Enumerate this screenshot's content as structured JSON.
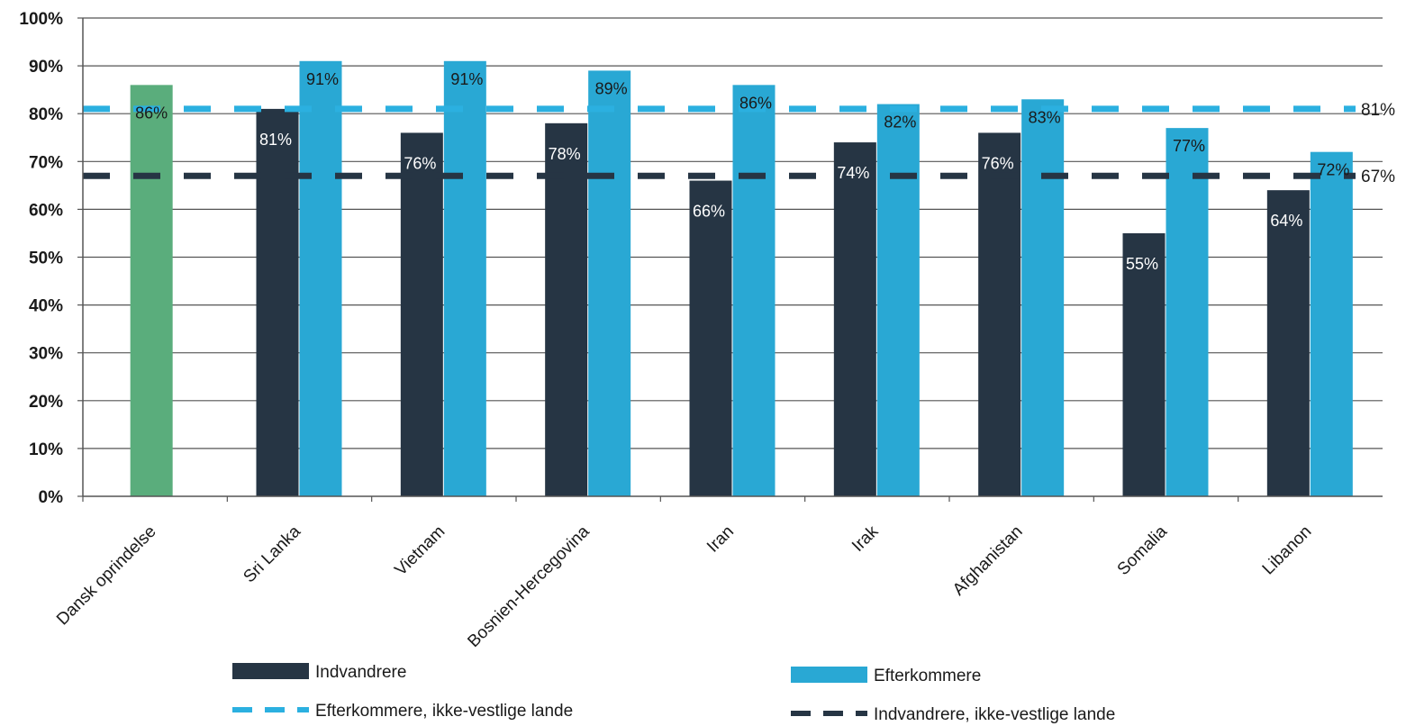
{
  "colors": {
    "indvandrere": "#263544",
    "efterkommere": "#29a8d4",
    "dansk": "#5aad7c",
    "efterkommere_ref": "#2bb0e0",
    "indvandrere_ref": "#263544",
    "grid": "#555555"
  },
  "chart_data": {
    "type": "bar",
    "ylim": [
      0,
      100
    ],
    "yticks": [
      "0%",
      "10%",
      "20%",
      "30%",
      "40%",
      "50%",
      "60%",
      "70%",
      "80%",
      "90%",
      "100%"
    ],
    "grid": true,
    "categories": [
      "Dansk oprindelse",
      "Sri Lanka",
      "Vietnam",
      "Bosnien-Hercegovina",
      "Iran",
      "Irak",
      "Afghanistan",
      "Somalia",
      "Libanon"
    ],
    "series": [
      {
        "name": "Indvandrere",
        "key": "indvandrere",
        "values": [
          null,
          81,
          76,
          78,
          66,
          74,
          76,
          55,
          64
        ],
        "labels": [
          "",
          "81%",
          "76%",
          "78%",
          "66%",
          "74%",
          "76%",
          "55%",
          "64%"
        ]
      },
      {
        "name": "Efterkommere",
        "key": "efterkommere",
        "values": [
          null,
          91,
          91,
          89,
          86,
          82,
          83,
          77,
          72
        ],
        "labels": [
          "",
          "91%",
          "91%",
          "89%",
          "86%",
          "82%",
          "83%",
          "77%",
          "72%"
        ]
      },
      {
        "name": "Dansk oprindelse",
        "key": "dansk",
        "values": [
          86,
          null,
          null,
          null,
          null,
          null,
          null,
          null,
          null
        ],
        "labels": [
          "86%",
          "",
          "",
          "",
          "",
          "",
          "",
          "",
          ""
        ]
      }
    ],
    "reference_lines": [
      {
        "name": "Efterkommere, ikke-vestlige lande",
        "key": "efterkommere_ref",
        "value": 81,
        "label": "81%"
      },
      {
        "name": "Indvandrere, ikke-vestlige lande",
        "key": "indvandrere_ref",
        "value": 67,
        "label": "67%"
      }
    ],
    "legend": {
      "placement": "bottom",
      "items": [
        {
          "label": "Indvandrere",
          "style": "bar",
          "key": "indvandrere"
        },
        {
          "label": "Efterkommere",
          "style": "bar",
          "key": "efterkommere"
        },
        {
          "label": "Efterkommere, ikke-vestlige lande",
          "style": "dash",
          "key": "efterkommere_ref"
        },
        {
          "label": "Indvandrere, ikke-vestlige lande",
          "style": "dash",
          "key": "indvandrere_ref"
        }
      ]
    }
  }
}
